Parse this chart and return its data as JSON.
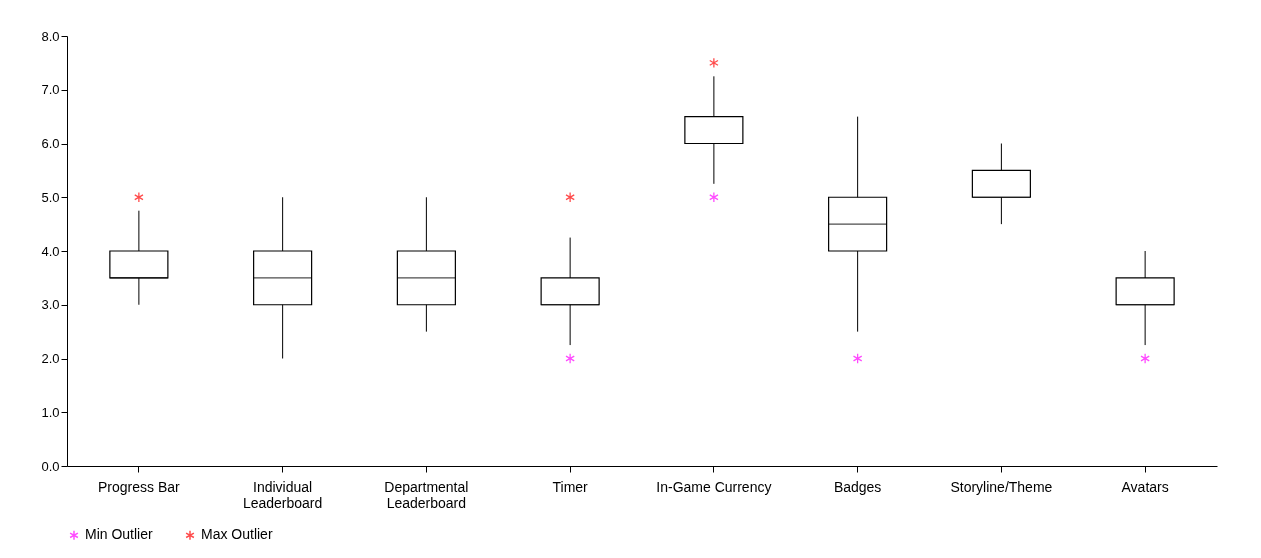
{
  "chart_data": {
    "type": "box",
    "categories": [
      "Progress Bar",
      "Individual Leaderboard",
      "Departmental Leaderboard",
      "Timer",
      "In-Game Currency",
      "Badges",
      "Storyline/Theme",
      "Avatars"
    ],
    "boxes": [
      {
        "low": 3.0,
        "q1": 3.5,
        "median": 3.5,
        "q3": 4.0,
        "high": 4.75
      },
      {
        "low": 2.0,
        "q1": 3.0,
        "median": 3.5,
        "q3": 4.0,
        "high": 5.0
      },
      {
        "low": 2.5,
        "q1": 3.0,
        "median": 3.5,
        "q3": 4.0,
        "high": 5.0
      },
      {
        "low": 2.25,
        "q1": 3.0,
        "median": 3.0,
        "q3": 3.5,
        "high": 4.25
      },
      {
        "low": 5.25,
        "q1": 6.0,
        "median": 6.0,
        "q3": 6.5,
        "high": 7.25
      },
      {
        "low": 2.5,
        "q1": 4.0,
        "median": 4.5,
        "q3": 5.0,
        "high": 6.5
      },
      {
        "low": 4.5,
        "q1": 5.0,
        "median": 5.0,
        "q3": 5.5,
        "high": 6.0
      },
      {
        "low": 2.25,
        "q1": 3.0,
        "median": 3.0,
        "q3": 3.5,
        "high": 4.0
      }
    ],
    "series": [
      {
        "name": "Min Outlier",
        "type": "scatter",
        "color": "#ff00ff",
        "x": [
          "In-Game Currency",
          "Timer",
          "Badges",
          "Avatars"
        ],
        "values": [
          5.0,
          2.0,
          2.0,
          2.0
        ]
      },
      {
        "name": "Max Outlier",
        "type": "scatter",
        "color": "#ff0000",
        "x": [
          "Progress Bar",
          "Timer",
          "In-Game Currency"
        ],
        "values": [
          5.0,
          5.0,
          7.5
        ]
      }
    ],
    "marker": "cross",
    "ylim": [
      0,
      8
    ],
    "yticks": [
      {
        "value": 0,
        "label": "0.0"
      },
      {
        "value": 1,
        "label": "1.0"
      },
      {
        "value": 2,
        "label": "2.0"
      },
      {
        "value": 3,
        "label": "3.0"
      },
      {
        "value": 4,
        "label": "4.0"
      },
      {
        "value": 5,
        "label": "5.0"
      },
      {
        "value": 6,
        "label": "6.0"
      },
      {
        "value": 7,
        "label": "7.0"
      },
      {
        "value": 8,
        "label": "8.0"
      }
    ],
    "grid": false,
    "legend": "bottom"
  }
}
